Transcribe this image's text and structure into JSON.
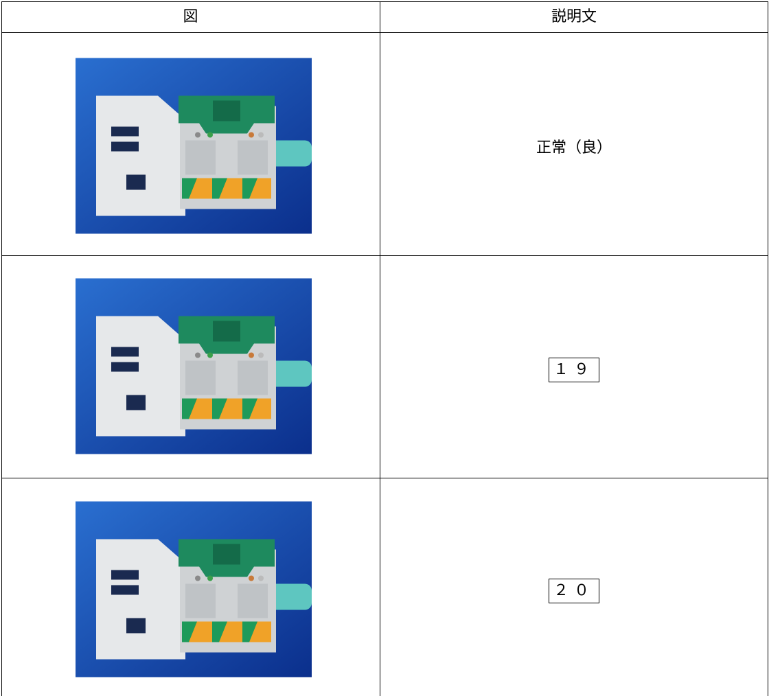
{
  "table": {
    "header": [
      "図",
      "説明文"
    ],
    "rows": [
      {
        "description": "正常（良）"
      },
      {
        "description": "１９"
      },
      {
        "description": "２０"
      }
    ]
  }
}
